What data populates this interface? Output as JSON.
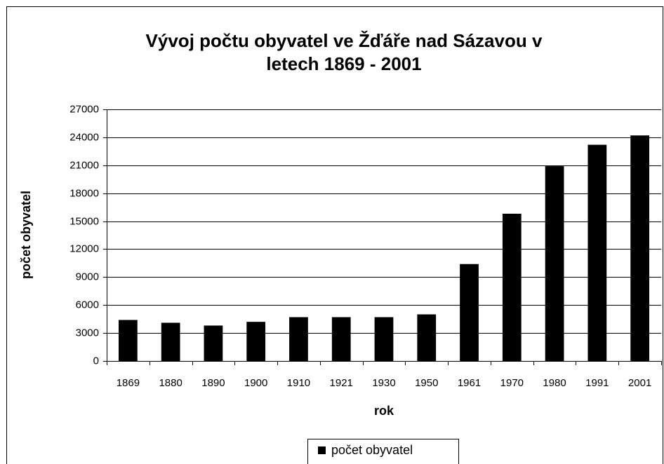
{
  "chart_data": {
    "type": "bar",
    "title": [
      "Vývoj počtu obyvatel ve Žďáře nad Sázavou v",
      "letech 1869 - 2001"
    ],
    "xlabel": "rok",
    "ylabel": "počet obyvatel",
    "categories": [
      "1869",
      "1880",
      "1890",
      "1900",
      "1910",
      "1921",
      "1930",
      "1950",
      "1961",
      "1970",
      "1980",
      "1991",
      "2001"
    ],
    "series": [
      {
        "name": "počet obyvatel",
        "color": "#000000",
        "values": [
          4400,
          4100,
          3800,
          4200,
          4700,
          4700,
          4700,
          5000,
          10400,
          15800,
          20900,
          23200,
          24200
        ]
      }
    ],
    "ylim": [
      0,
      27000
    ],
    "yticks": [
      0,
      3000,
      6000,
      9000,
      12000,
      15000,
      18000,
      21000,
      24000,
      27000
    ],
    "grid": true,
    "legend": "bottom"
  }
}
